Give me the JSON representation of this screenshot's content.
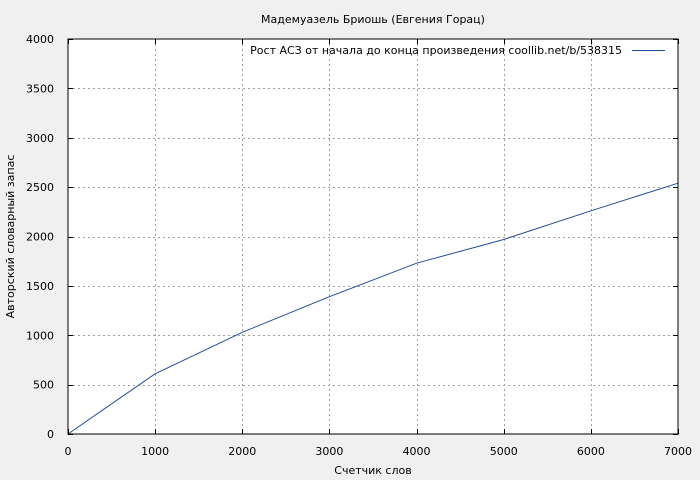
{
  "chart_data": {
    "type": "line",
    "title": "Мадемуазель Бриошь (Евгения Горац)",
    "xlabel": "Счетчик слов",
    "ylabel": "Авторский словарный запас",
    "xlim": [
      0,
      7000
    ],
    "ylim": [
      0,
      4000
    ],
    "x_ticks": [
      0,
      1000,
      2000,
      3000,
      4000,
      5000,
      6000,
      7000
    ],
    "y_ticks": [
      0,
      500,
      1000,
      1500,
      2000,
      2500,
      3000,
      3500,
      4000
    ],
    "grid": true,
    "legend_position": "top-right",
    "series": [
      {
        "name": "Рост АСЗ от начала до конца произведения  coollib.net/b/538315",
        "color": "#1f4e9c",
        "x": [
          0,
          1000,
          2000,
          3000,
          4000,
          5000,
          6000,
          7000
        ],
        "y": [
          0,
          610,
          1030,
          1390,
          1730,
          1970,
          2260,
          2540
        ]
      }
    ]
  }
}
